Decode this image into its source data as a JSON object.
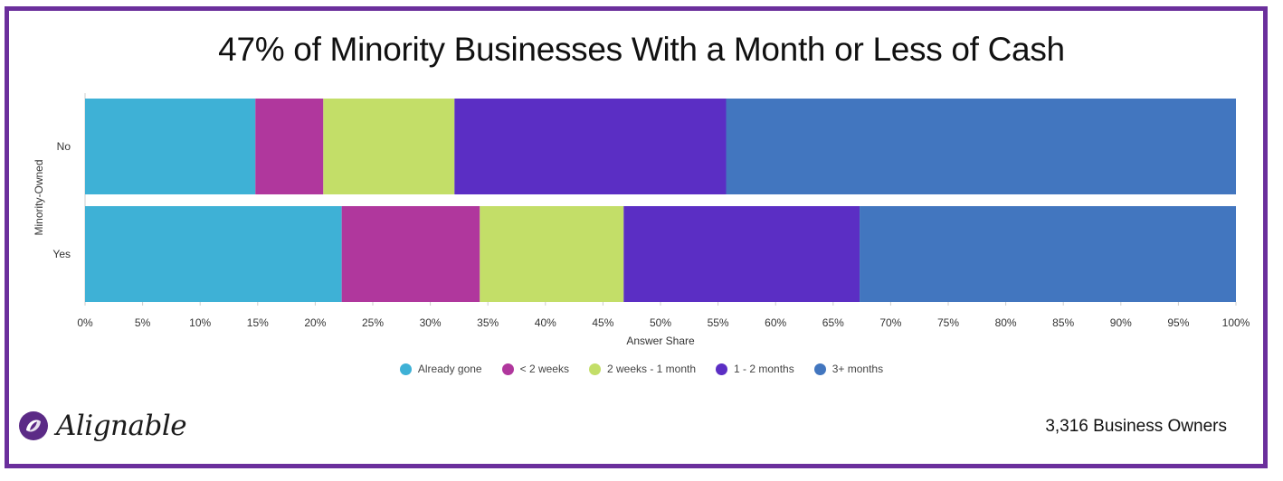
{
  "title": "47% of Minority Businesses With a Month or Less of Cash",
  "branding": {
    "logo_text": "Alignable",
    "logo_icon": "alignable-logo-icon"
  },
  "footer": {
    "respondents": "3,316 Business Owners"
  },
  "chart_data": {
    "type": "bar",
    "orientation": "horizontal",
    "stacked": true,
    "categories": [
      "No",
      "Yes"
    ],
    "xlabel": "Answer Share",
    "ylabel": "Minority-Owned",
    "xlim": [
      0,
      100
    ],
    "x_ticks": [
      "0%",
      "5%",
      "10%",
      "15%",
      "20%",
      "25%",
      "30%",
      "35%",
      "40%",
      "45%",
      "50%",
      "55%",
      "60%",
      "65%",
      "70%",
      "75%",
      "80%",
      "85%",
      "90%",
      "95%",
      "100%"
    ],
    "legend_position": "bottom",
    "series": [
      {
        "name": "Already gone",
        "color": "#3eb1d6",
        "values": [
          14.8,
          22.3
        ]
      },
      {
        "name": "< 2 weeks",
        "color": "#b0379d",
        "values": [
          5.9,
          12.0
        ]
      },
      {
        "name": "2 weeks - 1 month",
        "color": "#c3de68",
        "values": [
          11.4,
          12.5
        ]
      },
      {
        "name": "1 - 2 months",
        "color": "#5b2ec4",
        "values": [
          23.6,
          20.5
        ]
      },
      {
        "name": "3+ months",
        "color": "#4276bf",
        "values": [
          44.3,
          32.7
        ]
      }
    ]
  }
}
